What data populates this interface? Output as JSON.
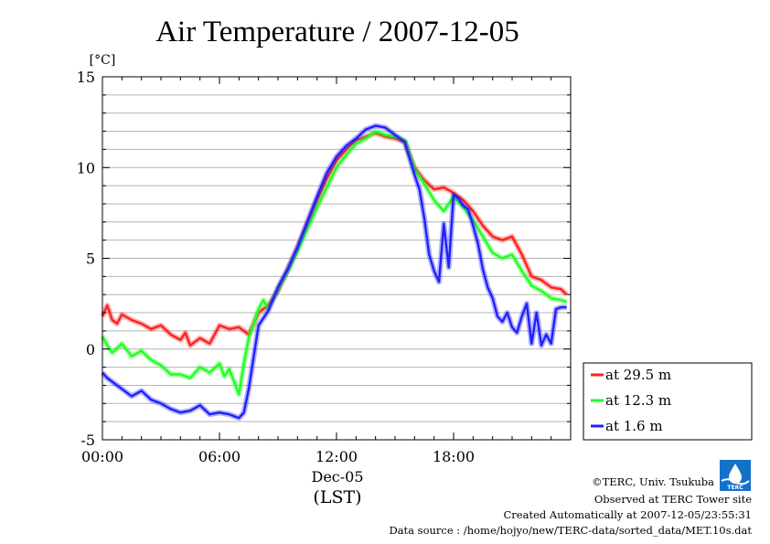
{
  "chart_data": {
    "type": "line",
    "title": "Air Temperature / 2007-12-05",
    "ylabel": "[°C]",
    "xlabel": "(LST)",
    "x_date_label": "Dec-05",
    "x_unit": "hour",
    "xlim": [
      0,
      24
    ],
    "ylim": [
      -5,
      15
    ],
    "y_ticks": [
      -5,
      0,
      5,
      10,
      15
    ],
    "x_ticks": [
      0,
      6,
      12,
      18
    ],
    "x_tick_labels": [
      "00:00",
      "06:00",
      "12:00",
      "18:00"
    ],
    "grid": true,
    "legend_position": "right",
    "series": [
      {
        "name": "at 29.5 m",
        "color": "#ff2020",
        "x": [
          0,
          0.25,
          0.5,
          0.75,
          1,
          1.5,
          2,
          2.5,
          3,
          3.5,
          4,
          4.25,
          4.5,
          5,
          5.5,
          6,
          6.5,
          7,
          7.5,
          8,
          8.5,
          9,
          9.5,
          10,
          10.5,
          11,
          11.5,
          12,
          12.5,
          13,
          13.5,
          14,
          14.5,
          15,
          15.5,
          16,
          16.5,
          17,
          17.5,
          18,
          18.5,
          19,
          19.5,
          20,
          20.5,
          21,
          21.5,
          22,
          22.5,
          23,
          23.5,
          23.8
        ],
        "y": [
          1.8,
          2.4,
          1.6,
          1.4,
          1.9,
          1.6,
          1.4,
          1.1,
          1.3,
          0.8,
          0.5,
          0.9,
          0.2,
          0.6,
          0.3,
          1.3,
          1.1,
          1.2,
          0.8,
          2.0,
          2.4,
          3.2,
          4.4,
          5.6,
          6.9,
          8.2,
          9.4,
          10.4,
          11.0,
          11.5,
          11.7,
          11.9,
          11.7,
          11.6,
          11.4,
          10.0,
          9.3,
          8.8,
          8.9,
          8.6,
          8.2,
          7.6,
          6.8,
          6.2,
          6.0,
          6.2,
          5.2,
          4.0,
          3.8,
          3.4,
          3.3,
          3.0
        ]
      },
      {
        "name": "at 12.3 m",
        "color": "#20ff20",
        "x": [
          0,
          0.25,
          0.5,
          1,
          1.5,
          2,
          2.5,
          3,
          3.5,
          4,
          4.5,
          5,
          5.5,
          6,
          6.25,
          6.5,
          7,
          7.25,
          7.5,
          8,
          8.25,
          8.5,
          9,
          9.5,
          10,
          10.5,
          11,
          11.5,
          12,
          12.5,
          13,
          13.5,
          14,
          14.5,
          15,
          15.5,
          16,
          16.5,
          17,
          17.5,
          18,
          18.5,
          19,
          19.5,
          20,
          20.5,
          21,
          21.5,
          22,
          22.5,
          23,
          23.5,
          23.8
        ],
        "y": [
          0.7,
          0.2,
          -0.2,
          0.3,
          -0.4,
          -0.1,
          -0.6,
          -0.9,
          -1.4,
          -1.4,
          -1.6,
          -1.0,
          -1.3,
          -0.8,
          -1.5,
          -1.1,
          -2.5,
          -0.8,
          0.6,
          2.2,
          2.7,
          2.2,
          3.3,
          4.3,
          5.4,
          6.6,
          7.8,
          8.9,
          10.0,
          10.7,
          11.3,
          11.6,
          12.0,
          11.8,
          11.7,
          11.5,
          9.9,
          9.1,
          8.2,
          7.6,
          8.4,
          7.8,
          7.1,
          6.2,
          5.3,
          5.0,
          5.2,
          4.3,
          3.5,
          3.2,
          2.8,
          2.7,
          2.6
        ]
      },
      {
        "name": "at 1.6 m",
        "color": "#2020ff",
        "x": [
          0,
          0.25,
          0.5,
          1,
          1.5,
          2,
          2.5,
          3,
          3.5,
          4,
          4.5,
          5,
          5.5,
          6,
          6.5,
          7,
          7.25,
          7.5,
          8,
          8.5,
          9,
          9.5,
          10,
          10.5,
          11,
          11.5,
          12,
          12.5,
          13,
          13.5,
          14,
          14.5,
          15,
          15.5,
          16,
          16.25,
          16.5,
          16.75,
          17,
          17.25,
          17.5,
          17.75,
          18,
          18.25,
          18.5,
          18.75,
          19,
          19.25,
          19.5,
          19.75,
          20,
          20.25,
          20.5,
          20.75,
          21,
          21.25,
          21.5,
          21.75,
          22,
          22.25,
          22.5,
          22.75,
          23,
          23.25,
          23.5,
          23.8
        ],
        "y": [
          -1.3,
          -1.6,
          -1.8,
          -2.2,
          -2.6,
          -2.3,
          -2.8,
          -3.0,
          -3.3,
          -3.5,
          -3.4,
          -3.1,
          -3.6,
          -3.5,
          -3.6,
          -3.8,
          -3.5,
          -2.2,
          1.3,
          2.1,
          3.4,
          4.4,
          5.6,
          7.0,
          8.4,
          9.7,
          10.6,
          11.2,
          11.6,
          12.1,
          12.3,
          12.2,
          11.8,
          11.4,
          9.6,
          8.8,
          7.2,
          5.2,
          4.3,
          3.7,
          6.9,
          4.5,
          8.5,
          8.3,
          7.9,
          7.7,
          6.8,
          5.8,
          4.4,
          3.4,
          2.8,
          1.8,
          1.5,
          2.0,
          1.2,
          0.9,
          1.8,
          2.5,
          0.3,
          2.0,
          0.2,
          0.8,
          0.3,
          2.2,
          2.3,
          2.3
        ]
      }
    ]
  },
  "credits": {
    "copyright": "©TERC, Univ. Tsukuba",
    "site": "Observed at TERC Tower site",
    "created": "Created Automatically at 2007-12-05/23:55:31",
    "source": "Data source : /home/hojyo/new/TERC-data/sorted_data/MET.10s.dat"
  },
  "logo": {
    "text": "TERC"
  }
}
